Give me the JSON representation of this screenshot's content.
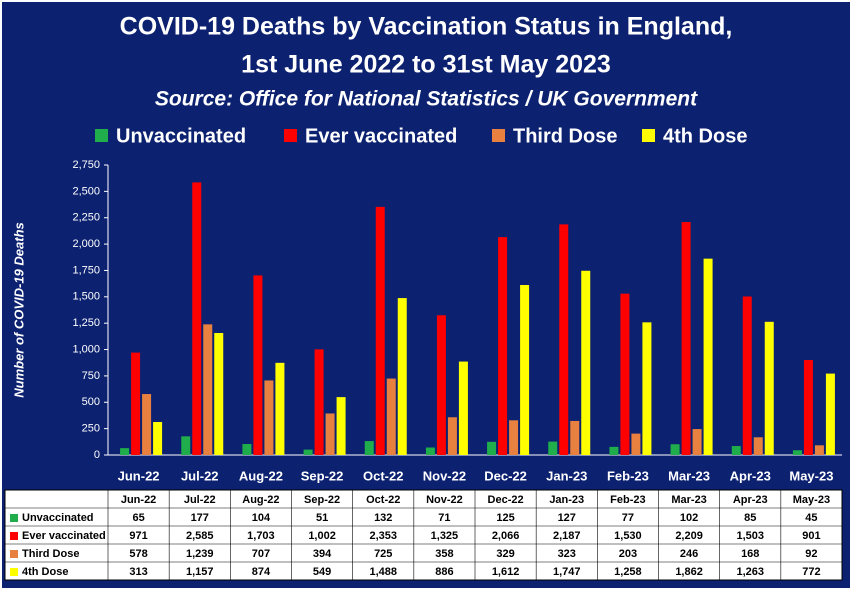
{
  "chart_data": {
    "type": "bar",
    "title": [
      "COVID-19 Deaths by Vaccination Status in England,",
      "1st June 2022 to 31st May 2023"
    ],
    "subtitle": "Source: Office for National Statistics / UK Government",
    "y_label": "Number of COVID-19 Deaths",
    "categories": [
      "Jun-22",
      "Jul-22",
      "Aug-22",
      "Sep-22",
      "Oct-22",
      "Nov-22",
      "Dec-22",
      "Jan-23",
      "Feb-23",
      "Mar-23",
      "Apr-23",
      "May-23"
    ],
    "series": [
      {
        "name": "Unvaccinated",
        "color": "#1fae4b",
        "values": [
          65,
          177,
          104,
          51,
          132,
          71,
          125,
          127,
          77,
          102,
          85,
          45
        ],
        "value_labels": [
          "65",
          "177",
          "104",
          "51",
          "132",
          "71",
          "125",
          "127",
          "77",
          "102",
          "85",
          "45"
        ]
      },
      {
        "name": "Ever vaccinated",
        "color": "#ff0000",
        "values": [
          971,
          2585,
          1703,
          1002,
          2353,
          1325,
          2066,
          2187,
          1530,
          2209,
          1503,
          901
        ],
        "value_labels": [
          "971",
          "2,585",
          "1,703",
          "1,002",
          "2,353",
          "1,325",
          "2,066",
          "2,187",
          "1,530",
          "2,209",
          "1,503",
          "901"
        ]
      },
      {
        "name": "Third Dose",
        "color": "#e8803f",
        "values": [
          578,
          1239,
          707,
          394,
          725,
          358,
          329,
          323,
          203,
          246,
          168,
          92
        ],
        "value_labels": [
          "578",
          "1,239",
          "707",
          "394",
          "725",
          "358",
          "329",
          "323",
          "203",
          "246",
          "168",
          "92"
        ]
      },
      {
        "name": "4th Dose",
        "color": "#ffff00",
        "values": [
          313,
          1157,
          874,
          549,
          1488,
          886,
          1612,
          1747,
          1258,
          1862,
          1263,
          772
        ],
        "value_labels": [
          "313",
          "1,157",
          "874",
          "549",
          "1,488",
          "886",
          "1,612",
          "1,747",
          "1,258",
          "1,862",
          "1,263",
          "772"
        ]
      }
    ],
    "ylim": [
      0,
      2750
    ],
    "yticks": [
      0,
      250,
      500,
      750,
      {
        "value": 1000,
        "label": "1,000"
      },
      {
        "value": 1250,
        "label": "1,250"
      },
      {
        "value": 1500,
        "label": "1,500"
      },
      {
        "value": 1750,
        "label": "1,750"
      },
      {
        "value": 2000,
        "label": "2,000"
      },
      {
        "value": 2250,
        "label": "2,250"
      },
      {
        "value": 2500,
        "label": "2,500"
      },
      {
        "value": 2750,
        "label": "2,750"
      }
    ],
    "grid": false,
    "legend": "top"
  }
}
